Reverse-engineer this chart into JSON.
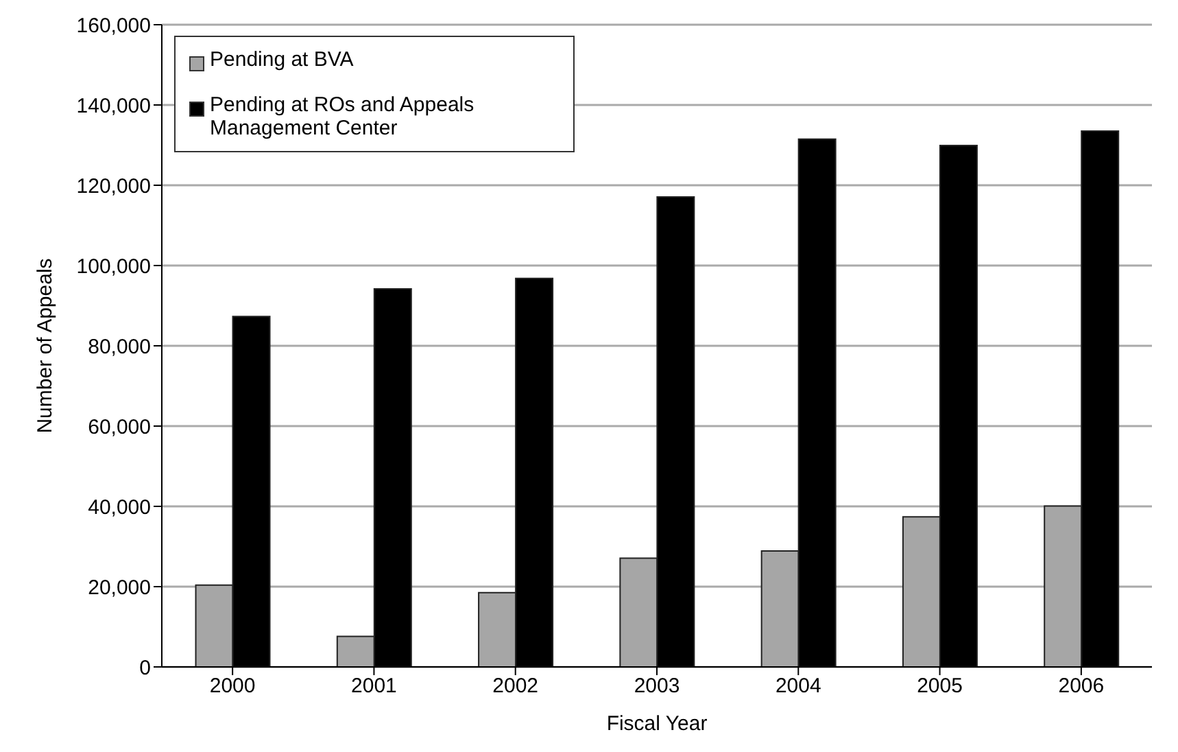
{
  "chart_data": {
    "type": "bar",
    "xlabel": "Fiscal Year",
    "ylabel": "Number of Appeals",
    "categories": [
      "2000",
      "2001",
      "2002",
      "2003",
      "2004",
      "2005",
      "2006"
    ],
    "series": [
      {
        "name": "Pending at BVA",
        "color": "#a6a6a6",
        "values": [
          20400,
          7600,
          18500,
          27100,
          28900,
          37400,
          40100
        ]
      },
      {
        "name": "Pending at ROs and Appeals Management Center",
        "color": "#000000",
        "values": [
          87300,
          94200,
          96800,
          117100,
          131500,
          129900,
          133500
        ]
      }
    ],
    "ylim": [
      0,
      160000
    ],
    "yticks": [
      0,
      {
        "value": 20000,
        "label": "20,000"
      },
      {
        "value": 40000,
        "label": "40,000"
      },
      {
        "value": 60000,
        "label": "60,000"
      },
      {
        "value": 80000,
        "label": "80,000"
      },
      {
        "value": 100000,
        "label": "100,000"
      },
      {
        "value": 120000,
        "label": "120,000"
      },
      {
        "value": 140000,
        "label": "140,000"
      },
      {
        "value": 160000,
        "label": "160,000"
      }
    ],
    "grid": "y",
    "legend": "top left"
  }
}
